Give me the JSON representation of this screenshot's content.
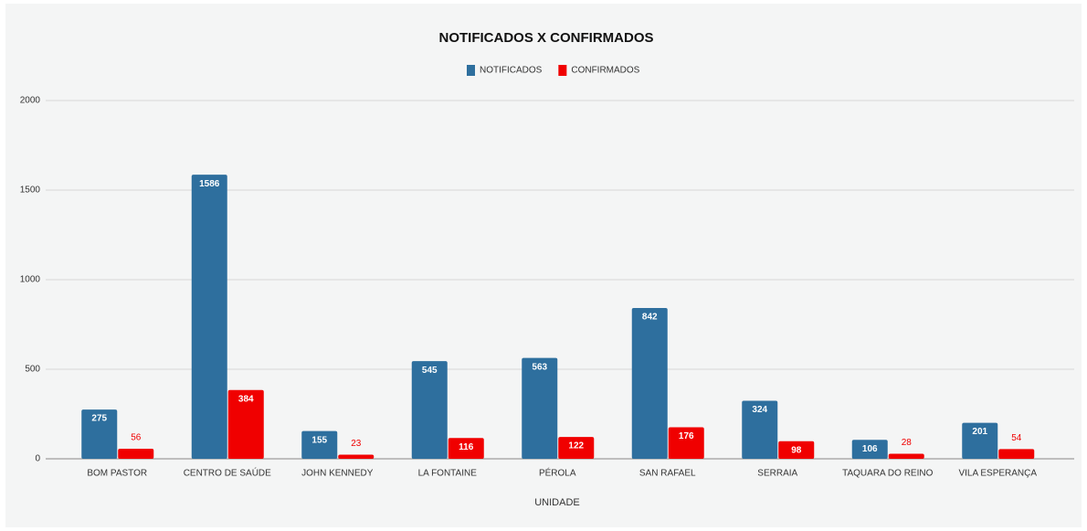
{
  "chart_data": {
    "type": "bar",
    "title": "NOTIFICADOS X CONFIRMADOS",
    "x_label": "UNIDADE",
    "categories": [
      "BOM PASTOR",
      "CENTRO DE SAÚDE",
      "JOHN KENNEDY",
      "LA FONTAINE",
      "PÉROLA",
      "SAN RAFAEL",
      "SERRAIA",
      "TAQUARA DO REINO",
      "VILA ESPERANÇA"
    ],
    "series": [
      {
        "name": "NOTIFICADOS",
        "color": "#2e6f9e",
        "values": [
          275,
          1586,
          155,
          545,
          563,
          842,
          324,
          106,
          201
        ]
      },
      {
        "name": "CONFIRMADOS",
        "color": "#f00000",
        "values": [
          56,
          384,
          23,
          116,
          122,
          176,
          98,
          28,
          54
        ]
      }
    ],
    "ylim": [
      0,
      2000
    ],
    "yticks": [
      0,
      500,
      1000,
      1500,
      2000
    ],
    "grid": true,
    "legend": "top"
  }
}
